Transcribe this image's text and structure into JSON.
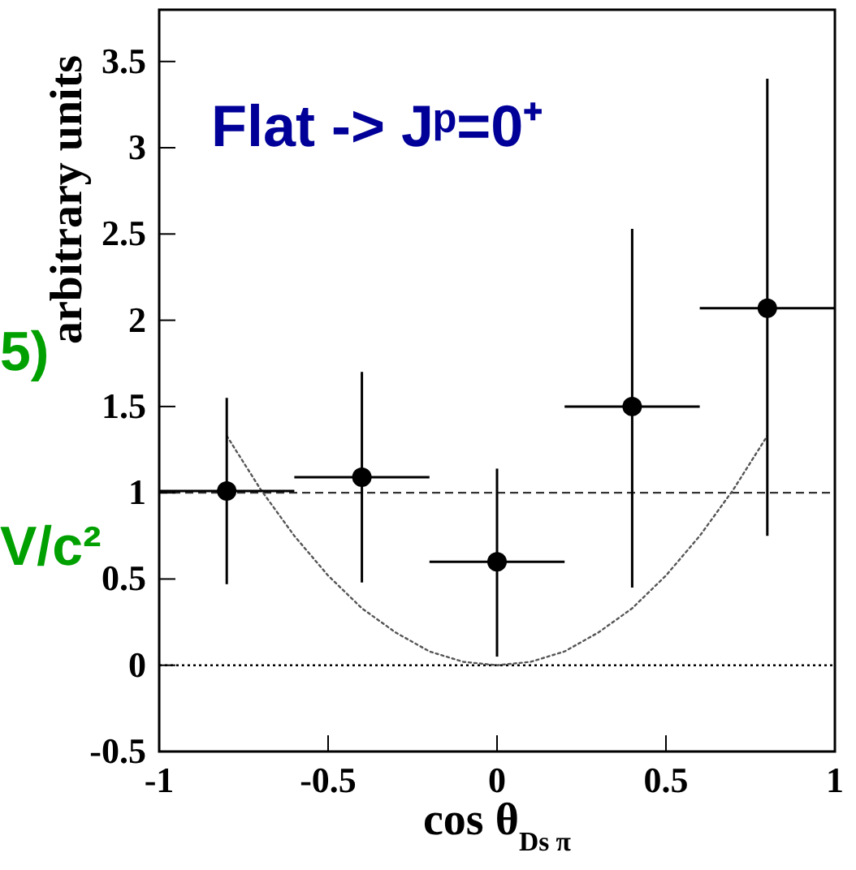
{
  "chart_data": {
    "type": "scatter",
    "xlabel": "cos θ$_{Ds π}$",
    "ylabel": "arbitrary units",
    "annotations": [
      "Flat  -> Jᵖ=0⁺",
      "5)",
      "V/c²"
    ],
    "xlim": [
      -1,
      1
    ],
    "xticks": [
      -1,
      -0.5,
      0,
      0.5,
      1
    ],
    "ylim": [
      -0.5,
      3.8
    ],
    "yticks": [
      -0.5,
      0,
      0.5,
      1,
      1.5,
      2,
      2.5,
      3,
      3.5
    ],
    "marker": "circle",
    "series": [
      {
        "color": "#000000",
        "x": [
          -0.8,
          -0.4,
          0,
          0.4,
          0.8
        ],
        "values": [
          1.01,
          1.09,
          0.6,
          1.5,
          2.07
        ],
        "errors": [
          [
            0.47,
            1.55
          ],
          [
            0.48,
            1.7
          ],
          [
            0.05,
            1.14
          ],
          [
            0.45,
            2.53
          ],
          [
            0.75,
            3.4
          ]
        ],
        "xerrors": [
          0.2,
          0.2,
          0.2,
          0.2,
          0.2
        ]
      },
      {
        "type": "line",
        "color": "#555555",
        "line_style": "dotted",
        "marker": "none",
        "x": [
          -0.8,
          -0.7,
          -0.6,
          -0.5,
          -0.4,
          -0.3,
          -0.2,
          -0.1,
          0,
          0.1,
          0.2,
          0.3,
          0.4,
          0.5,
          0.6,
          0.7,
          0.8
        ],
        "values": [
          1.33,
          1.02,
          0.75,
          0.52,
          0.33,
          0.19,
          0.08,
          0.02,
          0,
          0.02,
          0.08,
          0.19,
          0.33,
          0.52,
          0.75,
          1.02,
          1.33
        ]
      }
    ],
    "ref_lines": [
      {
        "axis": "y",
        "value": 1,
        "line_style": "dashed",
        "color": "#333333"
      },
      {
        "axis": "y",
        "value": 0,
        "line_style": "dotted",
        "color": "#000000"
      }
    ]
  }
}
